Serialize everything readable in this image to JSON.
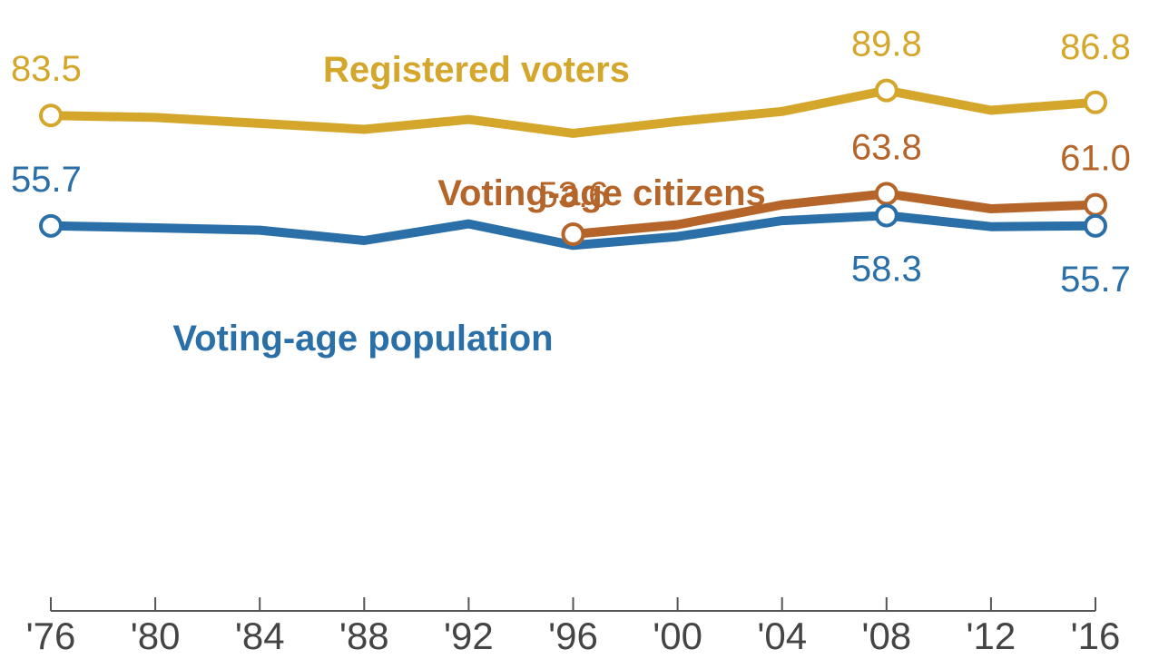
{
  "chart_data": {
    "type": "line",
    "categories": [
      "'76",
      "'80",
      "'84",
      "'88",
      "'92",
      "'96",
      "'00",
      "'04",
      "'08",
      "'12",
      "'16"
    ],
    "ylim": [
      0,
      100
    ],
    "grid": false,
    "legend": "inline labels",
    "series": [
      {
        "name": "Registered voters",
        "color": "#d4a72c",
        "values": [
          83.5,
          83.0,
          81.5,
          80.0,
          82.5,
          79.0,
          82.0,
          84.5,
          89.8,
          84.8,
          86.8
        ],
        "labels": [
          {
            "index": 0,
            "text": "83.5"
          },
          {
            "index": 8,
            "text": "89.8"
          },
          {
            "index": 10,
            "text": "86.8"
          }
        ],
        "markers": [
          0,
          8,
          10
        ]
      },
      {
        "name": "Voting-age citizens",
        "color": "#b5652a",
        "values": [
          null,
          null,
          null,
          null,
          null,
          53.6,
          56.0,
          61.0,
          63.8,
          60.0,
          61.0
        ],
        "labels": [
          {
            "index": 5,
            "text": "53.6"
          },
          {
            "index": 8,
            "text": "63.8"
          },
          {
            "index": 10,
            "text": "61.0"
          }
        ],
        "markers": [
          5,
          8,
          10
        ]
      },
      {
        "name": "Voting-age population",
        "color": "#2a6fa8",
        "values": [
          55.7,
          55.2,
          54.6,
          52.0,
          56.2,
          50.8,
          53.0,
          57.0,
          58.3,
          55.5,
          55.7
        ],
        "labels": [
          {
            "index": 0,
            "text": "55.7"
          },
          {
            "index": 8,
            "text": "58.3"
          },
          {
            "index": 10,
            "text": "55.7"
          }
        ],
        "markers": [
          0,
          8,
          10
        ]
      }
    ]
  }
}
